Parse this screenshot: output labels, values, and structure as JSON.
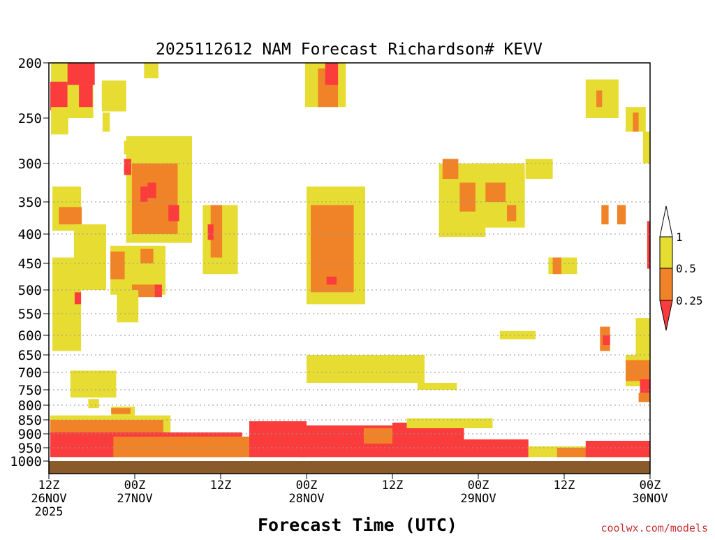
{
  "chart_data": {
    "type": "heatmap",
    "title": "2025112612 NAM Forecast Richardson# KEVV",
    "xlabel": "Forecast Time (UTC)",
    "ylabel": "",
    "credit": "coolwx.com/models",
    "y_axis": {
      "scale": "pressure (hPa), linear in height",
      "range": [
        1000,
        200
      ],
      "ticks": [
        200,
        250,
        300,
        350,
        400,
        450,
        500,
        550,
        600,
        650,
        700,
        750,
        800,
        850,
        900,
        950,
        1000
      ],
      "gridlines": "dotted at each tick from 300 to 950"
    },
    "x_axis": {
      "range": [
        "2025-11-26 12Z",
        "2025-11-30 00Z"
      ],
      "ticks": [
        {
          "hour": 0,
          "lines": [
            "12Z",
            "26NOV",
            "2025"
          ]
        },
        {
          "hour": 12,
          "lines": [
            "00Z",
            "27NOV"
          ]
        },
        {
          "hour": 24,
          "lines": [
            "12Z"
          ]
        },
        {
          "hour": 36,
          "lines": [
            "00Z",
            "28NOV"
          ]
        },
        {
          "hour": 48,
          "lines": [
            "12Z"
          ]
        },
        {
          "hour": 60,
          "lines": [
            "00Z",
            "29NOV"
          ]
        },
        {
          "hour": 72,
          "lines": [
            "12Z"
          ]
        },
        {
          "hour": 84,
          "lines": [
            "00Z",
            "30NOV"
          ]
        }
      ]
    },
    "legend": {
      "placement": "right",
      "levels": [
        "1",
        "0.5",
        "0.25"
      ],
      "bins": [
        {
          "range": "> 1",
          "color": "#ffffff"
        },
        {
          "range": "0.5 - 1",
          "color": "#e6dc32"
        },
        {
          "range": "0.25 - 0.5",
          "color": "#f08228"
        },
        {
          "range": "< 0.25",
          "color": "#fa3c3c"
        }
      ]
    },
    "colors": {
      "low": "#fa3c3c",
      "mid": "#f08228",
      "high": "#e6dc32",
      "ground": "#8b5a2b"
    },
    "regions": [
      {
        "hour_start": 0.3,
        "hour_end": 6.2,
        "p_top": 200,
        "p_bottom": 250,
        "category": "yellow"
      },
      {
        "hour_start": 2.6,
        "hour_end": 6.4,
        "p_top": 200,
        "p_bottom": 220,
        "category": "red"
      },
      {
        "hour_start": 0.2,
        "hour_end": 2.6,
        "p_top": 217,
        "p_bottom": 243,
        "category": "red"
      },
      {
        "hour_start": 0.3,
        "hour_end": 2.7,
        "p_top": 240,
        "p_bottom": 268,
        "category": "yellow"
      },
      {
        "hour_start": 4.2,
        "hour_end": 6.1,
        "p_top": 220,
        "p_bottom": 240,
        "category": "red"
      },
      {
        "hour_start": 7.4,
        "hour_end": 9.6,
        "p_top": 219,
        "p_bottom": 240,
        "category": "orange"
      },
      {
        "hour_start": 7.4,
        "hour_end": 10.8,
        "p_top": 216,
        "p_bottom": 244,
        "category": "yellow"
      },
      {
        "hour_start": 13.3,
        "hour_end": 15.3,
        "p_top": 200,
        "p_bottom": 214,
        "category": "yellow"
      },
      {
        "hour_start": 7.5,
        "hour_end": 8.5,
        "p_top": 245,
        "p_bottom": 265,
        "category": "yellow"
      },
      {
        "hour_start": 10.5,
        "hour_end": 12.5,
        "p_top": 275,
        "p_bottom": 290,
        "category": "yellow"
      },
      {
        "hour_start": 10.8,
        "hour_end": 20.0,
        "p_top": 270,
        "p_bottom": 415,
        "category": "yellow"
      },
      {
        "hour_start": 11.6,
        "hour_end": 18.0,
        "p_top": 300,
        "p_bottom": 400,
        "category": "orange"
      },
      {
        "hour_start": 10.5,
        "hour_end": 11.5,
        "p_top": 295,
        "p_bottom": 315,
        "category": "red"
      },
      {
        "hour_start": 12.8,
        "hour_end": 13.8,
        "p_top": 330,
        "p_bottom": 350,
        "category": "red"
      },
      {
        "hour_start": 16.7,
        "hour_end": 18.2,
        "p_top": 355,
        "p_bottom": 380,
        "category": "red"
      },
      {
        "hour_start": 13.8,
        "hour_end": 15.0,
        "p_top": 325,
        "p_bottom": 345,
        "category": "red"
      },
      {
        "hour_start": 0.5,
        "hour_end": 4.5,
        "p_top": 330,
        "p_bottom": 395,
        "category": "yellow"
      },
      {
        "hour_start": 1.4,
        "hour_end": 4.6,
        "p_top": 358,
        "p_bottom": 385,
        "category": "orange"
      },
      {
        "hour_start": 4.6,
        "hour_end": 7.5,
        "p_top": 390,
        "p_bottom": 420,
        "category": "orange"
      },
      {
        "hour_start": 3.5,
        "hour_end": 8.0,
        "p_top": 385,
        "p_bottom": 500,
        "category": "yellow"
      },
      {
        "hour_start": 8.6,
        "hour_end": 16.3,
        "p_top": 420,
        "p_bottom": 510,
        "category": "yellow"
      },
      {
        "hour_start": 8.6,
        "hour_end": 10.6,
        "p_top": 430,
        "p_bottom": 480,
        "category": "orange"
      },
      {
        "hour_start": 12.8,
        "hour_end": 14.6,
        "p_top": 425,
        "p_bottom": 450,
        "category": "orange"
      },
      {
        "hour_start": 11.6,
        "hour_end": 15.3,
        "p_top": 490,
        "p_bottom": 515,
        "category": "orange"
      },
      {
        "hour_start": 14.8,
        "hour_end": 15.8,
        "p_top": 490,
        "p_bottom": 515,
        "category": "red"
      },
      {
        "hour_start": 9.5,
        "hour_end": 12.5,
        "p_top": 500,
        "p_bottom": 570,
        "category": "yellow"
      },
      {
        "hour_start": 0.5,
        "hour_end": 4.5,
        "p_top": 440,
        "p_bottom": 640,
        "category": "yellow"
      },
      {
        "hour_start": 3.6,
        "hour_end": 4.5,
        "p_top": 505,
        "p_bottom": 530,
        "category": "red"
      },
      {
        "hour_start": 21.5,
        "hour_end": 26.4,
        "p_top": 355,
        "p_bottom": 470,
        "category": "yellow"
      },
      {
        "hour_start": 22.6,
        "hour_end": 24.2,
        "p_top": 355,
        "p_bottom": 440,
        "category": "orange"
      },
      {
        "hour_start": 22.2,
        "hour_end": 23.0,
        "p_top": 385,
        "p_bottom": 410,
        "category": "red"
      },
      {
        "hour_start": 35.8,
        "hour_end": 41.5,
        "p_top": 200,
        "p_bottom": 240,
        "category": "yellow"
      },
      {
        "hour_start": 37.6,
        "hour_end": 40.4,
        "p_top": 205,
        "p_bottom": 240,
        "category": "orange"
      },
      {
        "hour_start": 38.6,
        "hour_end": 40.4,
        "p_top": 200,
        "p_bottom": 220,
        "category": "red"
      },
      {
        "hour_start": 36.0,
        "hour_end": 44.2,
        "p_top": 330,
        "p_bottom": 530,
        "category": "yellow"
      },
      {
        "hour_start": 36.6,
        "hour_end": 42.6,
        "p_top": 355,
        "p_bottom": 505,
        "category": "orange"
      },
      {
        "hour_start": 38.8,
        "hour_end": 40.2,
        "p_top": 475,
        "p_bottom": 490,
        "category": "red"
      },
      {
        "hour_start": 36.0,
        "hour_end": 52.5,
        "p_top": 650,
        "p_bottom": 730,
        "category": "yellow"
      },
      {
        "hour_start": 51.5,
        "hour_end": 57.0,
        "p_top": 730,
        "p_bottom": 750,
        "category": "yellow"
      },
      {
        "hour_start": 54.5,
        "hour_end": 61.0,
        "p_top": 300,
        "p_bottom": 405,
        "category": "yellow"
      },
      {
        "hour_start": 55.0,
        "hour_end": 57.2,
        "p_top": 295,
        "p_bottom": 320,
        "category": "orange"
      },
      {
        "hour_start": 57.4,
        "hour_end": 59.6,
        "p_top": 325,
        "p_bottom": 365,
        "category": "orange"
      },
      {
        "hour_start": 60.0,
        "hour_end": 66.5,
        "p_top": 300,
        "p_bottom": 390,
        "category": "yellow"
      },
      {
        "hour_start": 61.0,
        "hour_end": 63.8,
        "p_top": 325,
        "p_bottom": 350,
        "category": "orange"
      },
      {
        "hour_start": 64.0,
        "hour_end": 65.3,
        "p_top": 355,
        "p_bottom": 380,
        "category": "orange"
      },
      {
        "hour_start": 66.6,
        "hour_end": 70.4,
        "p_top": 295,
        "p_bottom": 320,
        "category": "yellow"
      },
      {
        "hour_start": 63.0,
        "hour_end": 68.0,
        "p_top": 590,
        "p_bottom": 610,
        "category": "yellow"
      },
      {
        "hour_start": 75.0,
        "hour_end": 79.6,
        "p_top": 215,
        "p_bottom": 250,
        "category": "yellow"
      },
      {
        "hour_start": 76.5,
        "hour_end": 77.3,
        "p_top": 225,
        "p_bottom": 240,
        "category": "orange"
      },
      {
        "hour_start": 80.6,
        "hour_end": 83.4,
        "p_top": 240,
        "p_bottom": 265,
        "category": "yellow"
      },
      {
        "hour_start": 81.6,
        "hour_end": 82.4,
        "p_top": 245,
        "p_bottom": 265,
        "category": "orange"
      },
      {
        "hour_start": 83.0,
        "hour_end": 84.0,
        "p_top": 265,
        "p_bottom": 300,
        "category": "yellow"
      },
      {
        "hour_start": 69.8,
        "hour_end": 73.8,
        "p_top": 440,
        "p_bottom": 470,
        "category": "yellow"
      },
      {
        "hour_start": 70.4,
        "hour_end": 71.6,
        "p_top": 440,
        "p_bottom": 470,
        "category": "orange"
      },
      {
        "hour_start": 77.2,
        "hour_end": 78.2,
        "p_top": 355,
        "p_bottom": 385,
        "category": "orange"
      },
      {
        "hour_start": 79.4,
        "hour_end": 80.6,
        "p_top": 355,
        "p_bottom": 385,
        "category": "orange"
      },
      {
        "hour_start": 83.6,
        "hour_end": 84.0,
        "p_top": 380,
        "p_bottom": 460,
        "category": "red"
      },
      {
        "hour_start": 82.0,
        "hour_end": 84.0,
        "p_top": 560,
        "p_bottom": 660,
        "category": "yellow"
      },
      {
        "hour_start": 77.0,
        "hour_end": 78.4,
        "p_top": 580,
        "p_bottom": 640,
        "category": "orange"
      },
      {
        "hour_start": 77.4,
        "hour_end": 78.4,
        "p_top": 600,
        "p_bottom": 625,
        "category": "red"
      },
      {
        "hour_start": 80.6,
        "hour_end": 84.0,
        "p_top": 650,
        "p_bottom": 740,
        "category": "yellow"
      },
      {
        "hour_start": 80.6,
        "hour_end": 84.0,
        "p_top": 665,
        "p_bottom": 725,
        "category": "orange"
      },
      {
        "hour_start": 82.6,
        "hour_end": 84.0,
        "p_top": 720,
        "p_bottom": 760,
        "category": "red"
      },
      {
        "hour_start": 82.4,
        "hour_end": 84.0,
        "p_top": 760,
        "p_bottom": 790,
        "category": "orange"
      },
      {
        "hour_start": 3.0,
        "hour_end": 9.4,
        "p_top": 695,
        "p_bottom": 775,
        "category": "yellow"
      },
      {
        "hour_start": 5.5,
        "hour_end": 7.0,
        "p_top": 780,
        "p_bottom": 810,
        "category": "yellow"
      },
      {
        "hour_start": 8.7,
        "hour_end": 12.0,
        "p_top": 805,
        "p_bottom": 835,
        "category": "yellow"
      },
      {
        "hour_start": 8.7,
        "hour_end": 11.4,
        "p_top": 810,
        "p_bottom": 830,
        "category": "orange"
      },
      {
        "hour_start": 0.2,
        "hour_end": 17.0,
        "p_top": 835,
        "p_bottom": 900,
        "category": "yellow"
      },
      {
        "hour_start": 0.2,
        "hour_end": 16.0,
        "p_top": 850,
        "p_bottom": 900,
        "category": "orange"
      },
      {
        "hour_start": 0.2,
        "hour_end": 27.0,
        "p_top": 895,
        "p_bottom": 985,
        "category": "red"
      },
      {
        "hour_start": 9.0,
        "hour_end": 28.0,
        "p_top": 910,
        "p_bottom": 985,
        "category": "orange"
      },
      {
        "hour_start": 28.0,
        "hour_end": 36.0,
        "p_top": 855,
        "p_bottom": 985,
        "category": "red"
      },
      {
        "hour_start": 35.0,
        "hour_end": 48.0,
        "p_top": 870,
        "p_bottom": 985,
        "category": "red"
      },
      {
        "hour_start": 44.0,
        "hour_end": 49.0,
        "p_top": 880,
        "p_bottom": 935,
        "category": "orange"
      },
      {
        "hour_start": 48.0,
        "hour_end": 58.0,
        "p_top": 860,
        "p_bottom": 985,
        "category": "red"
      },
      {
        "hour_start": 50.0,
        "hour_end": 62.0,
        "p_top": 845,
        "p_bottom": 880,
        "category": "yellow"
      },
      {
        "hour_start": 58.0,
        "hour_end": 67.0,
        "p_top": 920,
        "p_bottom": 985,
        "category": "red"
      },
      {
        "hour_start": 67.0,
        "hour_end": 84.0,
        "p_top": 945,
        "p_bottom": 985,
        "category": "yellow"
      },
      {
        "hour_start": 71.0,
        "hour_end": 84.0,
        "p_top": 950,
        "p_bottom": 985,
        "category": "orange"
      },
      {
        "hour_start": 75.0,
        "hour_end": 84.0,
        "p_top": 925,
        "p_bottom": 985,
        "category": "red"
      }
    ]
  }
}
